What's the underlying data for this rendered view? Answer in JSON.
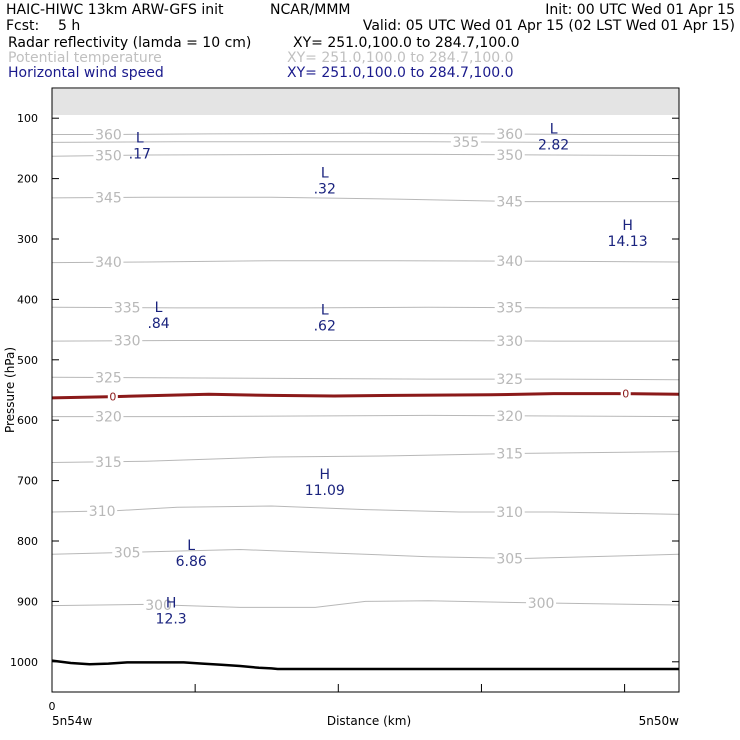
{
  "header": {
    "model": "HAIC-HIWC 13km ARW-GFS init",
    "org": "NCAR/MMM",
    "init": "Init: 00 UTC Wed 01 Apr 15",
    "fcst_label": "Fcst:",
    "fcst_value": "5 h",
    "valid": "Valid: 05 UTC Wed 01 Apr 15 (02 LST Wed 01 Apr 15)"
  },
  "fields": [
    {
      "label": "Radar reflectivity (lamda = 10 cm)",
      "xy": "XY= 251.0,100.0 to 284.7,100.0",
      "color": "#000000"
    },
    {
      "label": "Potential temperature",
      "xy": "XY= 251.0,100.0 to 284.7,100.0",
      "color": "#c0c0c0"
    },
    {
      "label": "Horizontal wind speed",
      "xy": "XY= 251.0,100.0 to 284.7,100.0",
      "color": "#1a1a8c"
    }
  ],
  "colors": {
    "theta": "#b8b8b8",
    "wind": "#1a237e",
    "zero_line": "#8b1a1a",
    "terrain": "#000000",
    "frame": "#000000"
  },
  "chart_data": {
    "type": "cross-section",
    "ylabel": "Pressure (hPa)",
    "xlabel": "Distance (km)",
    "x_start_label": "5n54w",
    "x_end_label": "5n50w",
    "x_origin_tick": "0",
    "xlim": [
      0,
      1
    ],
    "ylim": [
      1050,
      50
    ],
    "y_ticks": [
      100,
      200,
      300,
      400,
      500,
      600,
      700,
      800,
      900,
      1000
    ],
    "theta_contours": [
      {
        "value": 360,
        "x": [
          0,
          0.1,
          0.25,
          0.5,
          0.7,
          0.85,
          1
        ],
        "p": [
          127,
          127,
          126,
          125,
          126,
          127,
          127
        ],
        "labels": [
          {
            "x": 0.09,
            "text": "360"
          },
          {
            "x": 0.73,
            "text": "360"
          }
        ]
      },
      {
        "value": 355,
        "x": [
          0,
          0.2,
          0.4,
          0.6,
          0.8,
          1
        ],
        "p": [
          140,
          139,
          139,
          139,
          140,
          140
        ],
        "labels": [
          {
            "x": 0.66,
            "text": "355"
          }
        ]
      },
      {
        "value": 350,
        "x": [
          0,
          0.15,
          0.4,
          0.6,
          0.8,
          1
        ],
        "p": [
          163,
          161,
          160,
          160,
          161,
          162
        ],
        "labels": [
          {
            "x": 0.09,
            "text": "350"
          },
          {
            "x": 0.73,
            "text": "350"
          }
        ]
      },
      {
        "value": 345,
        "x": [
          0,
          0.15,
          0.35,
          0.55,
          0.75,
          1
        ],
        "p": [
          232,
          231,
          231,
          234,
          238,
          238
        ],
        "labels": [
          {
            "x": 0.09,
            "text": "345"
          },
          {
            "x": 0.73,
            "text": "345"
          }
        ]
      },
      {
        "value": 340,
        "x": [
          0,
          0.15,
          0.35,
          0.55,
          0.8,
          1
        ],
        "p": [
          339,
          338,
          336,
          336,
          337,
          338
        ],
        "labels": [
          {
            "x": 0.09,
            "text": "340"
          },
          {
            "x": 0.73,
            "text": "340"
          }
        ]
      },
      {
        "value": 335,
        "x": [
          0,
          0.2,
          0.4,
          0.6,
          0.8,
          1
        ],
        "p": [
          413,
          414,
          414,
          413,
          414,
          414
        ],
        "labels": [
          {
            "x": 0.12,
            "text": "335"
          },
          {
            "x": 0.73,
            "text": "335"
          }
        ]
      },
      {
        "value": 330,
        "x": [
          0,
          0.2,
          0.4,
          0.6,
          0.8,
          1
        ],
        "p": [
          469,
          468,
          468,
          468,
          469,
          469
        ],
        "labels": [
          {
            "x": 0.12,
            "text": "330"
          },
          {
            "x": 0.73,
            "text": "330"
          }
        ]
      },
      {
        "value": 325,
        "x": [
          0,
          0.2,
          0.4,
          0.6,
          0.8,
          1
        ],
        "p": [
          529,
          530,
          531,
          532,
          532,
          533
        ],
        "labels": [
          {
            "x": 0.09,
            "text": "325"
          },
          {
            "x": 0.73,
            "text": "325"
          }
        ]
      },
      {
        "value": 320,
        "x": [
          0,
          0.2,
          0.4,
          0.6,
          0.8,
          1
        ],
        "p": [
          594,
          594,
          593,
          592,
          593,
          594
        ],
        "labels": [
          {
            "x": 0.09,
            "text": "320"
          },
          {
            "x": 0.73,
            "text": "320"
          }
        ]
      },
      {
        "value": 315,
        "x": [
          0,
          0.15,
          0.35,
          0.55,
          0.75,
          1
        ],
        "p": [
          670,
          668,
          661,
          659,
          655,
          652
        ],
        "labels": [
          {
            "x": 0.09,
            "text": "315"
          },
          {
            "x": 0.73,
            "text": "315"
          }
        ]
      },
      {
        "value": 310,
        "x": [
          0,
          0.1,
          0.2,
          0.35,
          0.5,
          0.65,
          0.8,
          1
        ],
        "p": [
          752,
          750,
          744,
          742,
          748,
          752,
          752,
          756
        ],
        "labels": [
          {
            "x": 0.08,
            "text": "310"
          },
          {
            "x": 0.73,
            "text": "310"
          }
        ]
      },
      {
        "value": 305,
        "x": [
          0,
          0.15,
          0.3,
          0.45,
          0.6,
          0.75,
          1
        ],
        "p": [
          822,
          818,
          814,
          820,
          826,
          829,
          822
        ],
        "labels": [
          {
            "x": 0.12,
            "text": "305"
          },
          {
            "x": 0.73,
            "text": "305"
          }
        ]
      },
      {
        "value": 300,
        "x": [
          0,
          0.15,
          0.3,
          0.42,
          0.5,
          0.6,
          0.75,
          1
        ],
        "p": [
          907,
          905,
          910,
          910,
          900,
          899,
          902,
          906
        ],
        "labels": [
          {
            "x": 0.17,
            "text": "300"
          },
          {
            "x": 0.78,
            "text": "300"
          }
        ]
      }
    ],
    "zero_line": {
      "x": [
        0,
        0.1,
        0.25,
        0.35,
        0.45,
        0.55,
        0.7,
        0.8,
        0.9,
        1
      ],
      "p": [
        563,
        561,
        557,
        559,
        560,
        559,
        558,
        556,
        556,
        557
      ],
      "labels": [
        {
          "x": 0.097,
          "text": "0"
        },
        {
          "x": 0.915,
          "text": "0"
        }
      ]
    },
    "wind_extrema": [
      {
        "type": "L",
        "value": ".17",
        "x": 0.14,
        "p": 140
      },
      {
        "type": "L",
        "value": "2.82",
        "x": 0.8,
        "p": 125
      },
      {
        "type": "L",
        "value": ".32",
        "x": 0.435,
        "p": 198
      },
      {
        "type": "H",
        "value": "14.13",
        "x": 0.918,
        "p": 285
      },
      {
        "type": "L",
        "value": ".84",
        "x": 0.17,
        "p": 421
      },
      {
        "type": "L",
        "value": ".62",
        "x": 0.435,
        "p": 425
      },
      {
        "type": "H",
        "value": "11.09",
        "x": 0.435,
        "p": 697
      },
      {
        "type": "L",
        "value": "6.86",
        "x": 0.222,
        "p": 815
      },
      {
        "type": "H",
        "value": "12.3",
        "x": 0.19,
        "p": 910
      }
    ],
    "terrain": {
      "x": [
        0,
        0.03,
        0.06,
        0.09,
        0.12,
        0.15,
        0.18,
        0.21,
        0.24,
        0.27,
        0.3,
        0.33,
        0.35,
        0.36,
        1
      ],
      "p": [
        998,
        1002,
        1004,
        1003,
        1001,
        1001,
        1001,
        1001,
        1003,
        1005,
        1007,
        1010,
        1011,
        1012,
        1012
      ]
    }
  }
}
